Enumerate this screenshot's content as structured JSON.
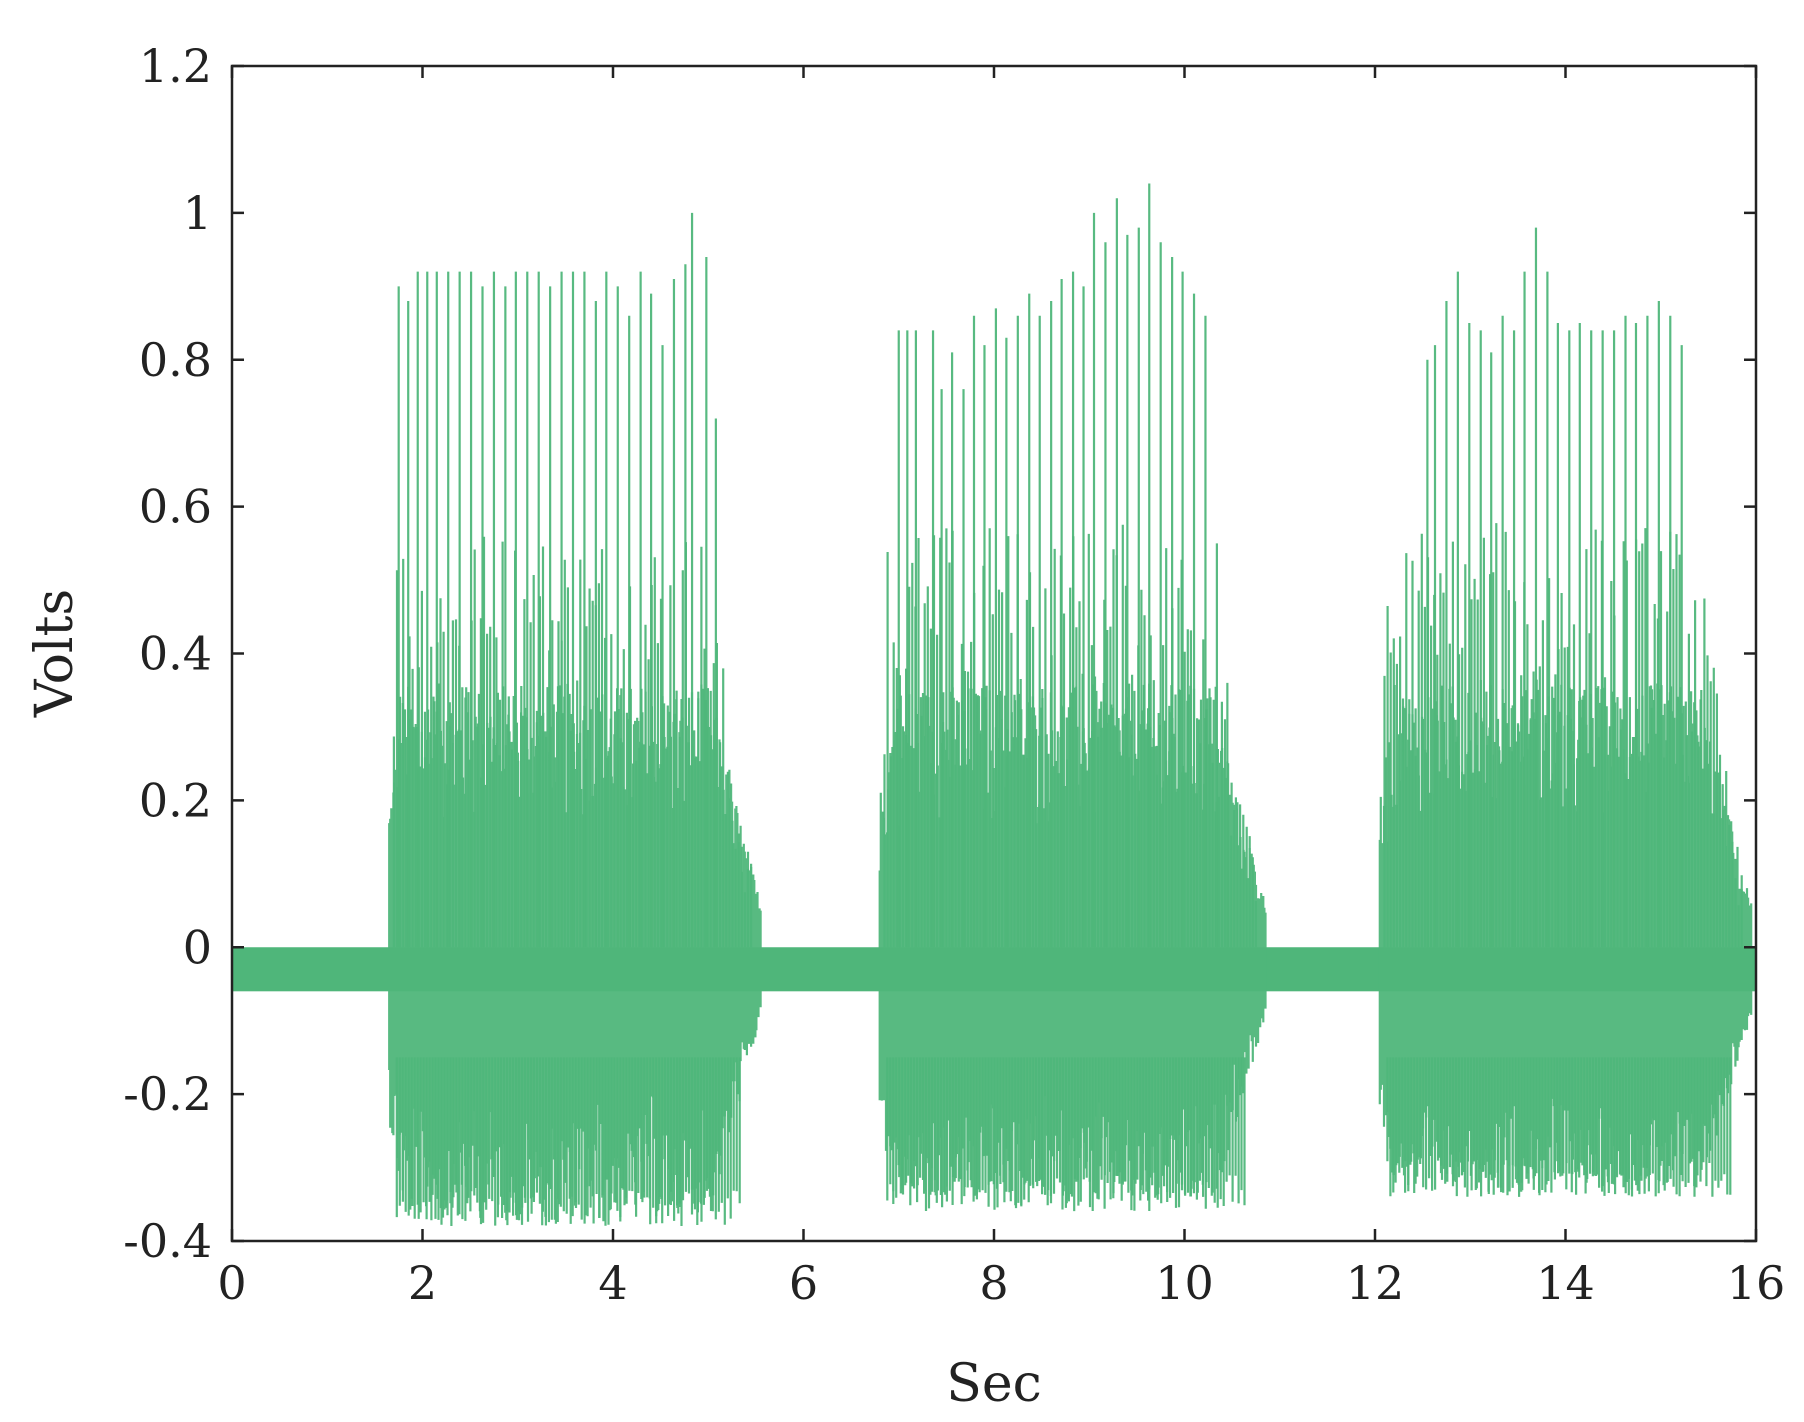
{
  "chart_data": {
    "type": "line",
    "title": "",
    "xlabel": "Sec",
    "ylabel": "Volts",
    "xlim": [
      0,
      16
    ],
    "ylim": [
      -0.4,
      1.2
    ],
    "xticks": [
      0,
      2,
      4,
      6,
      8,
      10,
      12,
      14,
      16
    ],
    "xtick_labels": [
      "0",
      "2",
      "4",
      "6",
      "8",
      "10",
      "12",
      "14",
      "16"
    ],
    "yticks": [
      -0.4,
      -0.2,
      0,
      0.2,
      0.4,
      0.6,
      0.8,
      1,
      1.2
    ],
    "ytick_labels": [
      "-0.4",
      "-0.2",
      "0",
      "0.2",
      "0.4",
      "0.6",
      "0.8",
      "1",
      "1.2"
    ],
    "grid": false,
    "legend": "none",
    "series_color": "#4fb67a",
    "baseline": {
      "y_top": 0.0,
      "y_bottom": -0.06
    },
    "bursts": [
      {
        "t_start": 1.65,
        "t_end": 5.55,
        "spikes": [
          [
            1.75,
            0.9
          ],
          [
            1.85,
            0.88
          ],
          [
            1.95,
            0.92
          ],
          [
            2.05,
            0.92
          ],
          [
            2.15,
            0.92
          ],
          [
            2.27,
            0.92
          ],
          [
            2.39,
            0.92
          ],
          [
            2.51,
            0.92
          ],
          [
            2.63,
            0.9
          ],
          [
            2.75,
            0.92
          ],
          [
            2.87,
            0.9
          ],
          [
            2.98,
            0.92
          ],
          [
            3.1,
            0.92
          ],
          [
            3.22,
            0.92
          ],
          [
            3.34,
            0.9
          ],
          [
            3.46,
            0.92
          ],
          [
            3.58,
            0.92
          ],
          [
            3.7,
            0.92
          ],
          [
            3.82,
            0.88
          ],
          [
            3.93,
            0.92
          ],
          [
            4.05,
            0.9
          ],
          [
            4.17,
            0.86
          ],
          [
            4.29,
            0.92
          ],
          [
            4.4,
            0.89
          ],
          [
            4.52,
            0.82
          ],
          [
            4.64,
            0.91
          ],
          [
            4.76,
            0.93
          ],
          [
            4.83,
            1.0
          ],
          [
            4.98,
            0.94
          ],
          [
            5.08,
            0.72
          ]
        ],
        "min_value": -0.38
      },
      {
        "t_start": 6.8,
        "t_end": 10.85,
        "spikes": [
          [
            7.0,
            0.84
          ],
          [
            7.09,
            0.84
          ],
          [
            7.18,
            0.84
          ],
          [
            7.36,
            0.84
          ],
          [
            7.45,
            0.76
          ],
          [
            7.56,
            0.81
          ],
          [
            7.68,
            0.76
          ],
          [
            7.79,
            0.86
          ],
          [
            7.9,
            0.82
          ],
          [
            8.02,
            0.87
          ],
          [
            8.13,
            0.83
          ],
          [
            8.25,
            0.86
          ],
          [
            8.37,
            0.89
          ],
          [
            8.48,
            0.86
          ],
          [
            8.6,
            0.88
          ],
          [
            8.71,
            0.91
          ],
          [
            8.83,
            0.92
          ],
          [
            8.94,
            0.9
          ],
          [
            9.05,
            1.0
          ],
          [
            9.17,
            0.96
          ],
          [
            9.29,
            1.02
          ],
          [
            9.4,
            0.97
          ],
          [
            9.52,
            0.98
          ],
          [
            9.63,
            1.04
          ],
          [
            9.75,
            0.96
          ],
          [
            9.87,
            0.94
          ],
          [
            9.98,
            0.92
          ],
          [
            10.1,
            0.89
          ],
          [
            10.22,
            0.86
          ],
          [
            10.34,
            0.55
          ],
          [
            10.45,
            0.36
          ]
        ],
        "min_value": -0.36
      },
      {
        "t_start": 12.05,
        "t_end": 15.95,
        "spikes": [
          [
            12.55,
            0.8
          ],
          [
            12.63,
            0.82
          ],
          [
            12.75,
            0.88
          ],
          [
            12.87,
            0.92
          ],
          [
            12.99,
            0.85
          ],
          [
            13.11,
            0.84
          ],
          [
            13.22,
            0.81
          ],
          [
            13.34,
            0.86
          ],
          [
            13.46,
            0.84
          ],
          [
            13.57,
            0.92
          ],
          [
            13.69,
            0.98
          ],
          [
            13.81,
            0.92
          ],
          [
            13.92,
            0.85
          ],
          [
            14.04,
            0.84
          ],
          [
            14.15,
            0.85
          ],
          [
            14.27,
            0.84
          ],
          [
            14.39,
            0.84
          ],
          [
            14.51,
            0.84
          ],
          [
            14.63,
            0.86
          ],
          [
            14.74,
            0.85
          ],
          [
            14.86,
            0.86
          ],
          [
            14.98,
            0.88
          ],
          [
            15.1,
            0.86
          ],
          [
            15.22,
            0.82
          ]
        ],
        "min_value": -0.34
      }
    ]
  }
}
